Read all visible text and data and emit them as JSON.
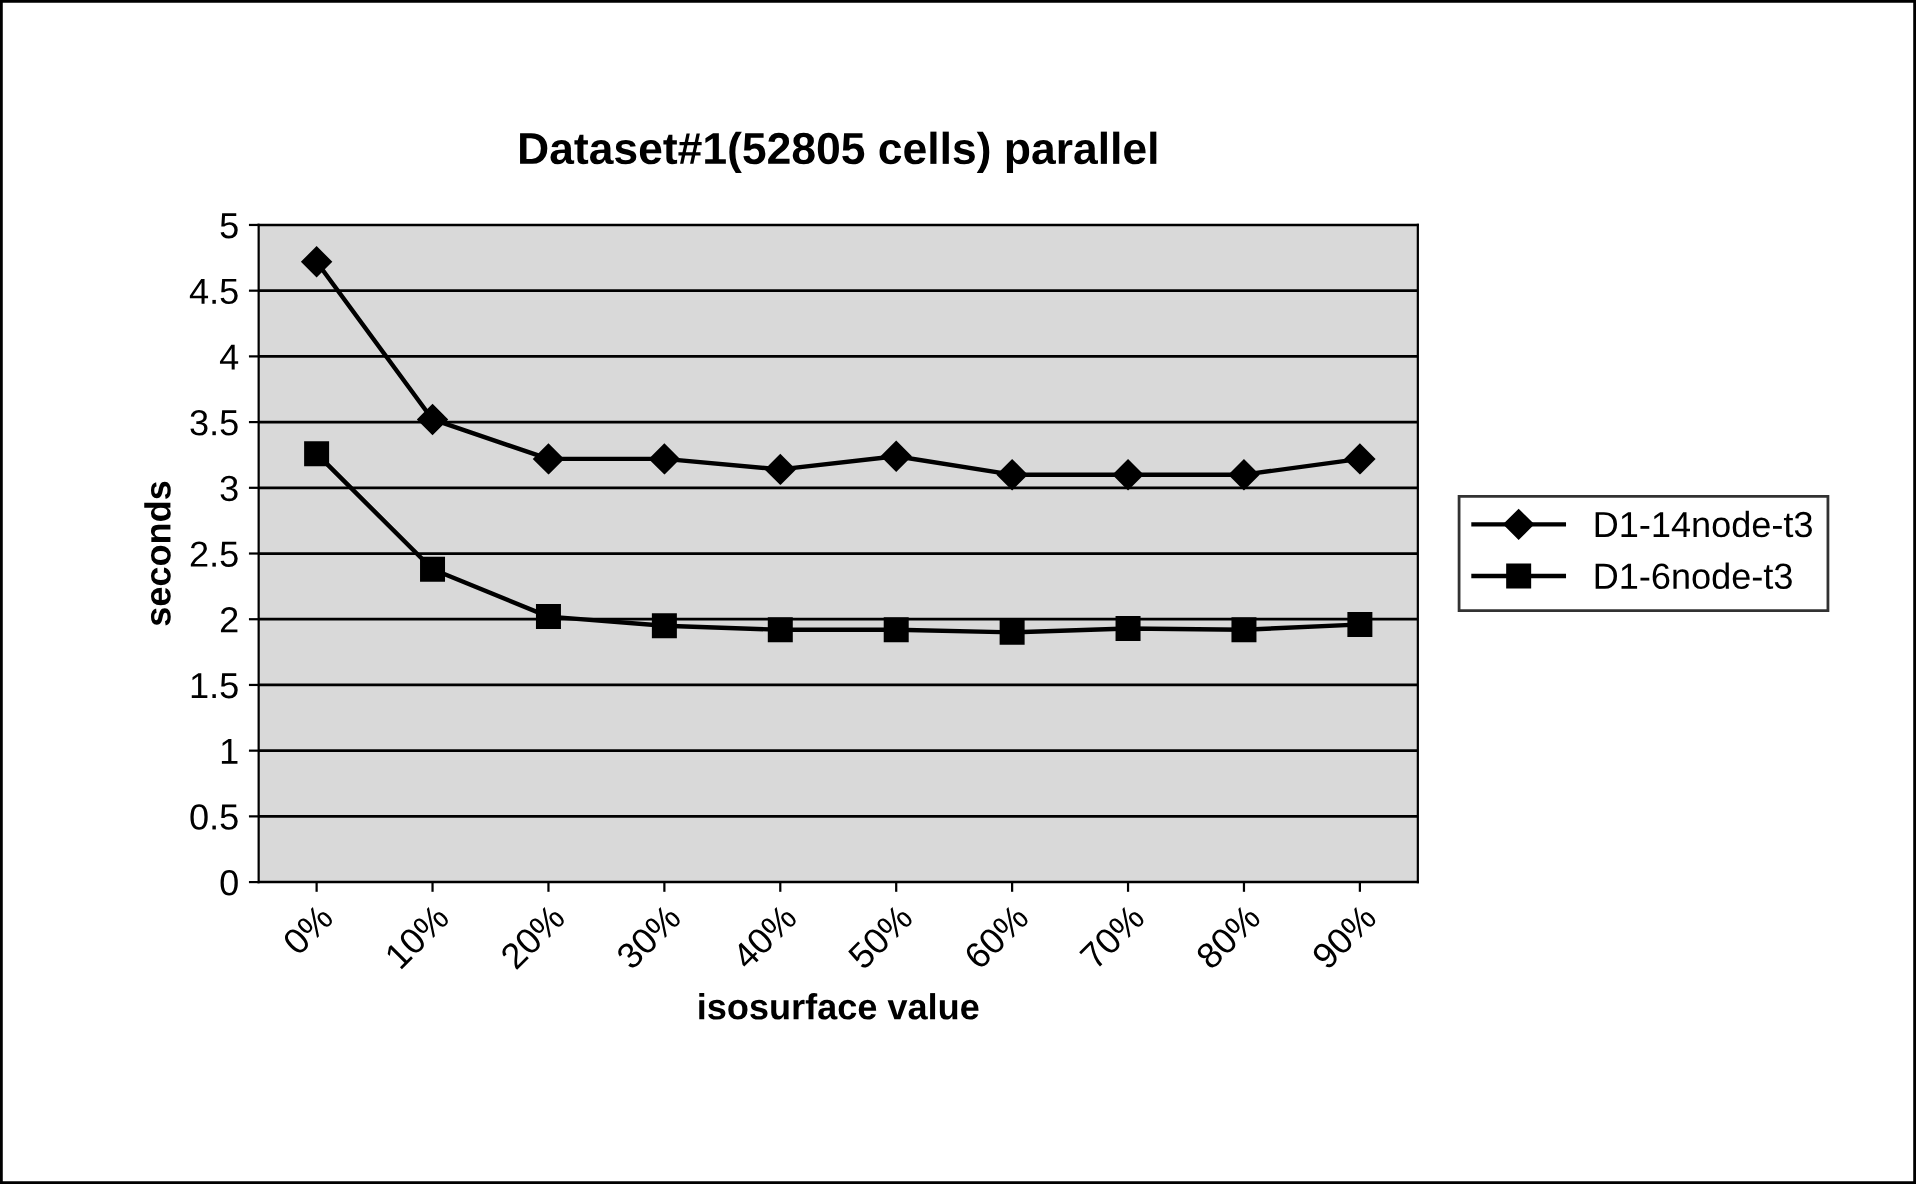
{
  "chart_data": {
    "type": "line",
    "title": "Dataset#1(52805 cells) parallel",
    "xlabel": "isosurface value",
    "ylabel": "seconds",
    "categories": [
      "0%",
      "10%",
      "20%",
      "30%",
      "40%",
      "50%",
      "60%",
      "70%",
      "80%",
      "90%"
    ],
    "series": [
      {
        "name": "D1-14node-t3",
        "color": "#000000",
        "marker": "diamond",
        "values": [
          4.72,
          3.52,
          3.22,
          3.22,
          3.14,
          3.24,
          3.1,
          3.1,
          3.1,
          3.22
        ]
      },
      {
        "name": "D1-6node-t3",
        "color": "#000000",
        "marker": "square",
        "values": [
          3.26,
          2.38,
          2.02,
          1.95,
          1.92,
          1.92,
          1.9,
          1.93,
          1.92,
          1.96
        ]
      }
    ],
    "ylim": [
      0,
      5
    ],
    "yticks": [
      0,
      0.5,
      1,
      1.5,
      2,
      2.5,
      3,
      3.5,
      4,
      4.5,
      5
    ],
    "grid": "y",
    "legend": "right",
    "line_style": "solid"
  }
}
